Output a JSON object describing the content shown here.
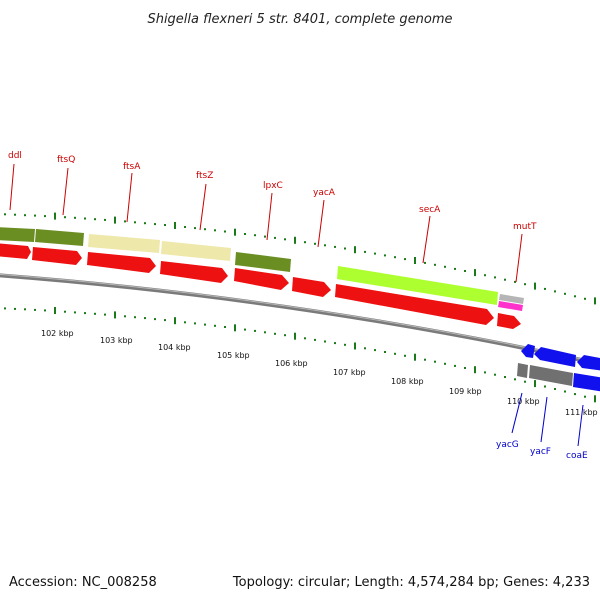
{
  "title": "Shigella flexneri 5 str. 8401, complete genome",
  "footer": {
    "accession": "Accession: NC_008258",
    "topology": "Topology: circular; Length: 4,574,284 bp; Genes: 4,233"
  },
  "scale_labels": [
    "102 kbp",
    "103 kbp",
    "104 kbp",
    "105 kbp",
    "106 kbp",
    "107 kbp",
    "108 kbp",
    "109 kbp",
    "110 kbp",
    "111 kbp"
  ],
  "genes_top": [
    "ddl",
    "ftsQ",
    "ftsA",
    "ftsZ",
    "lpxC",
    "yacA",
    "secA",
    "mutT"
  ],
  "genes_bottom": [
    "yacG",
    "yacF",
    "coaE"
  ],
  "colors": {
    "cds_red": "#ee1111",
    "olive": "#6b8e23",
    "khaki": "#eee8aa",
    "greenyellow": "#adff2f",
    "magenta": "#ff33cc",
    "blue": "#1111ee",
    "gray": "#707070",
    "tick_green": "#1a7a1a",
    "backbone": "#8a8a8a"
  }
}
